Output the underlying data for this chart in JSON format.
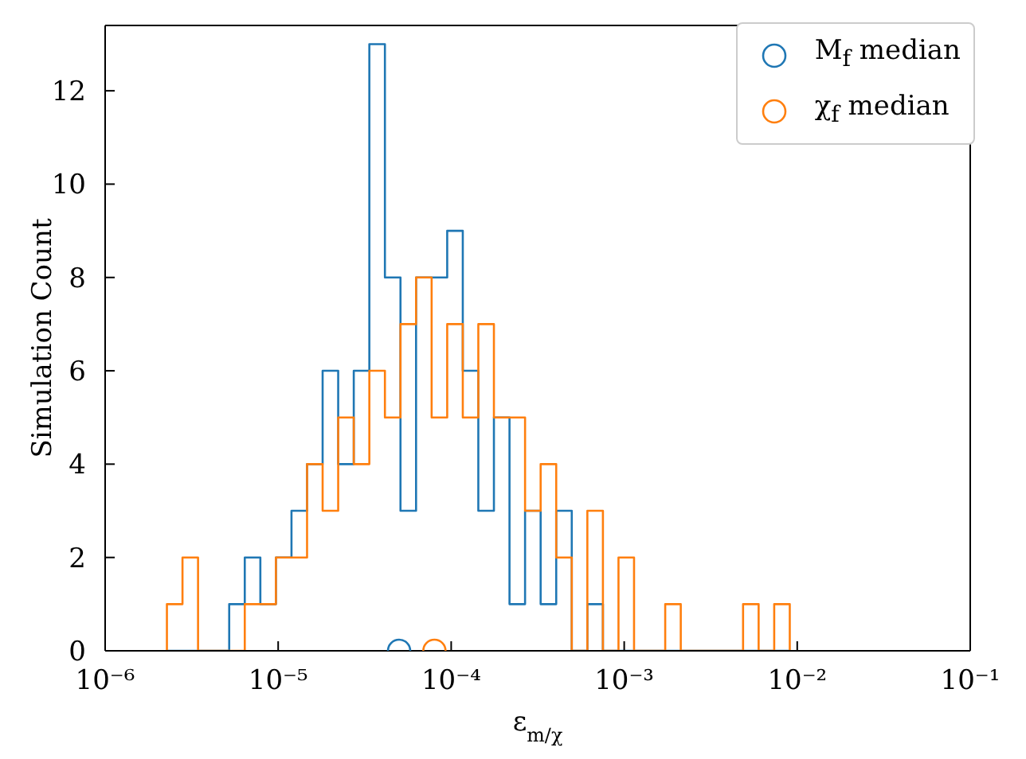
{
  "chart_data": {
    "type": "histogram",
    "xlabel": "ε$_{m/χ}$",
    "ylabel": "Simulation Count",
    "log": "x",
    "legend": "top right",
    "xlim": [
      1e-06,
      0.1
    ],
    "xticks": [
      {
        "value": 1e-06,
        "label": "10⁻⁶"
      },
      {
        "value": 1e-05,
        "label": "10⁻⁵"
      },
      {
        "value": 0.0001,
        "label": "10⁻⁴"
      },
      {
        "value": 0.001,
        "label": "10⁻³"
      },
      {
        "value": 0.01,
        "label": "10⁻²"
      },
      {
        "value": 0.1,
        "label": "10⁻¹"
      }
    ],
    "ylim": [
      0,
      13.4
    ],
    "yticks": [
      0,
      2,
      4,
      6,
      8,
      10,
      12
    ],
    "bins": [
      2.275e-06,
      2.799e-06,
      3.443e-06,
      4.236e-06,
      5.212e-06,
      6.412e-06,
      7.889e-06,
      9.705e-06,
      1.194e-05,
      1.469e-05,
      1.807e-05,
      2.223e-05,
      2.735e-05,
      3.365e-05,
      4.14e-05,
      5.093e-05,
      6.266e-05,
      7.709e-05,
      9.484e-05,
      0.0001167,
      0.0001435,
      0.0001766,
      0.0002173,
      0.0002673,
      0.0003289,
      0.0004046,
      0.0004977,
      0.0006124,
      0.0007534,
      0.0009268,
      0.00114,
      0.001403,
      0.001726,
      0.002123,
      0.002612,
      0.003214,
      0.003954,
      0.004864,
      0.005984,
      0.007362,
      0.009057
    ],
    "series": [
      {
        "color": "#1f77b4",
        "values": [
          0,
          0,
          0,
          0,
          1,
          2,
          1,
          2,
          3,
          4,
          6,
          4,
          6,
          13,
          8,
          3,
          8,
          8,
          9,
          6,
          3,
          5,
          1,
          3,
          1,
          3,
          0,
          1,
          0,
          0,
          0,
          0,
          0,
          0,
          0,
          0,
          0,
          0,
          0,
          0
        ]
      },
      {
        "color": "#ff7f0e",
        "values": [
          1,
          2,
          0,
          0,
          0,
          1,
          1,
          2,
          2,
          4,
          3,
          5,
          4,
          6,
          5,
          7,
          8,
          5,
          7,
          5,
          7,
          5,
          5,
          3,
          4,
          2,
          0,
          3,
          0,
          2,
          0,
          0,
          1,
          0,
          0,
          0,
          0,
          1,
          0,
          1
        ]
      },
      {
        "type": "scatter",
        "name": "M$_{f}$ median",
        "color": "#1f77b4",
        "marker": "circle",
        "x": [
          5e-05
        ],
        "values": [
          0
        ]
      },
      {
        "type": "scatter",
        "name": "χ$_{f}$ median",
        "color": "#ff7f0e",
        "marker": "circle",
        "x": [
          8e-05
        ],
        "values": [
          0
        ]
      }
    ]
  }
}
